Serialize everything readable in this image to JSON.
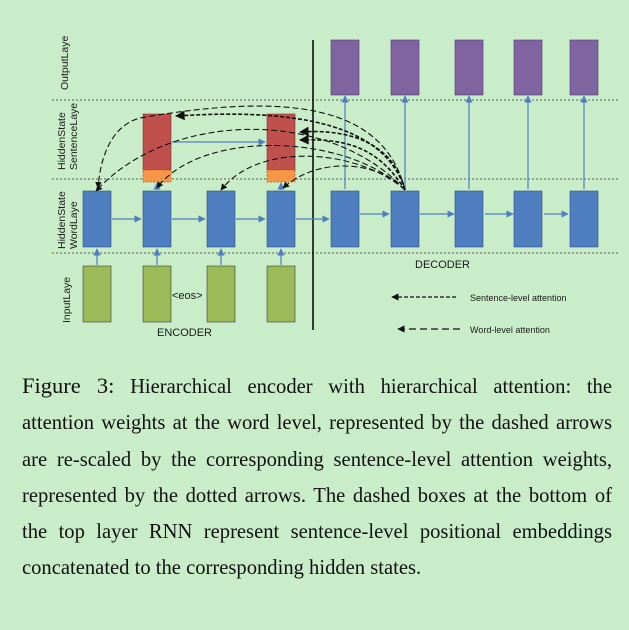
{
  "diagram": {
    "layers": {
      "output": "OutputLaye",
      "sentence_line1": "HiddenState",
      "sentence_line2": "SentenceLaye",
      "word_line1": "HiddenState",
      "word_line2": "WordLaye",
      "input": "InputLaye"
    },
    "eos_label": "<eos>",
    "encoder_label": "ENCODER",
    "decoder_label": "DECODER",
    "legend": {
      "sentence": "Sentence-level attention",
      "word": "Word-level attention"
    },
    "colors": {
      "background": "#c9ecc9",
      "word_node": "#4f7fc1",
      "sentence_node": "#c0504d",
      "positional_box": "#f79646",
      "output_node": "#8064a2",
      "input_node": "#9bbb59",
      "connector": "#4f7fc1"
    }
  },
  "caption": {
    "prefix": "Figure 3:",
    "text": "Hierarchical encoder with hierarchical attention: the attention weights at the word level, represented by the dashed arrows are re-scaled by the corresponding sentence-level attention weights, represented by the dotted arrows. The dashed boxes at the bottom of the top layer RNN represent sentence-level positional embeddings concatenated to the corresponding hidden states."
  }
}
